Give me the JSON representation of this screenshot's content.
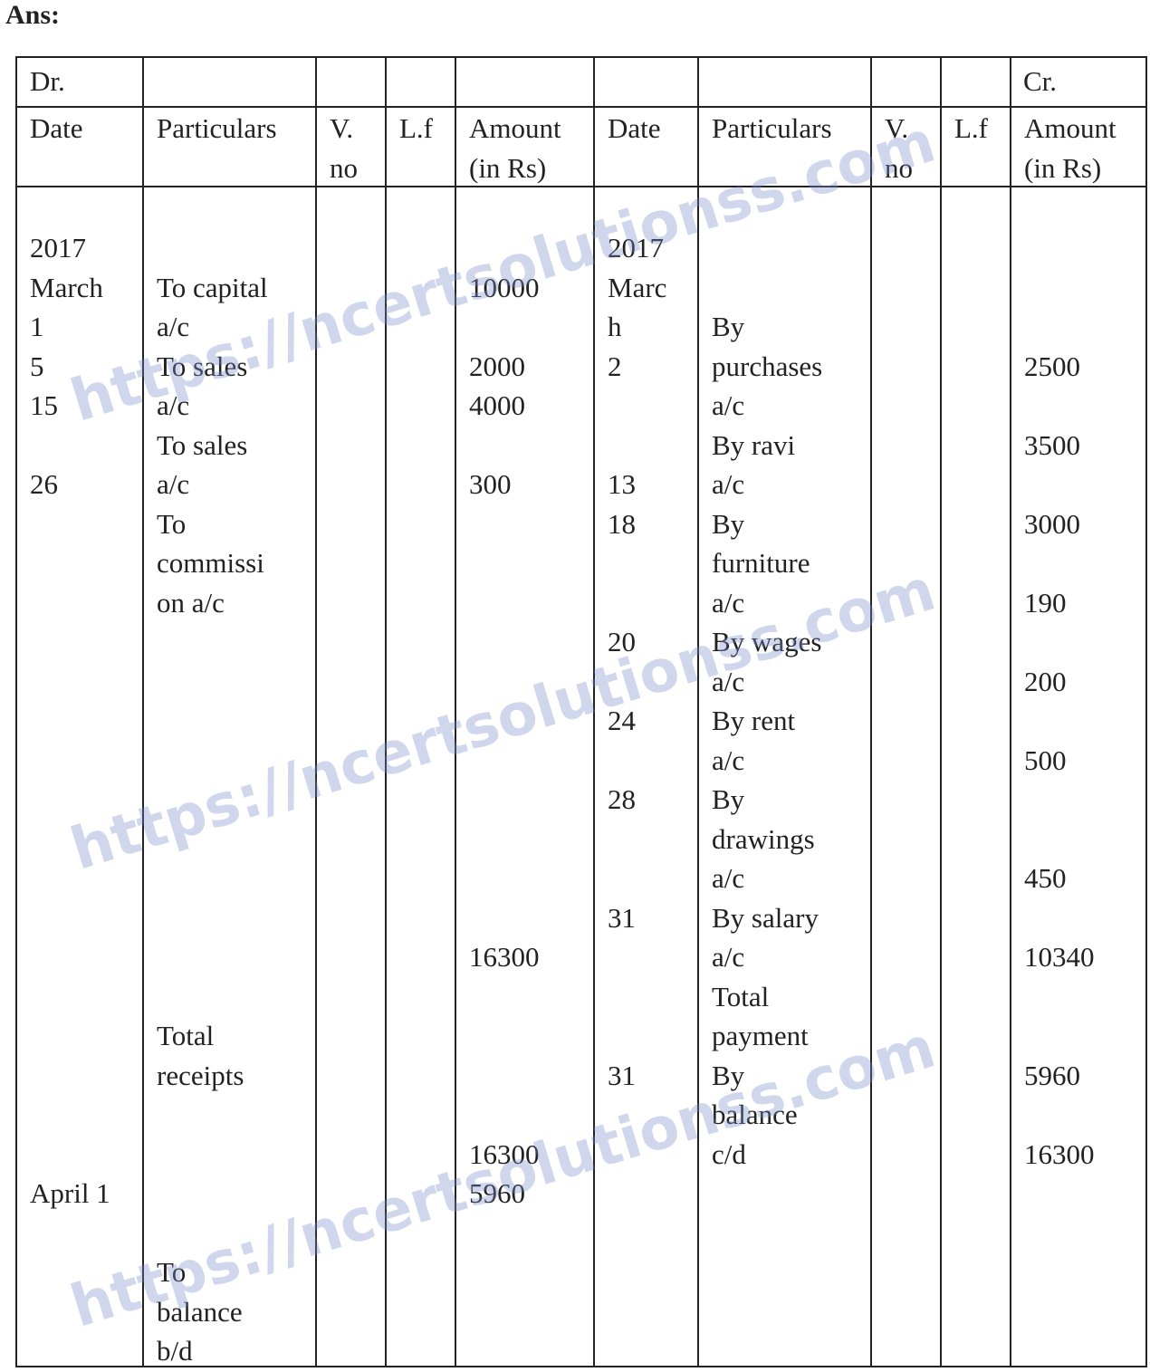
{
  "heading": "Ans:",
  "watermark": "https://ncertsolutionss.com",
  "top_row": {
    "dr": "Dr.",
    "cr": "Cr."
  },
  "headers": {
    "dr_date": "Date",
    "dr_particulars": "Particulars",
    "dr_vno": "V.\nno",
    "dr_lf": "L.f",
    "dr_amount": "Amount\n(in Rs)",
    "cr_date": "Date",
    "cr_particulars": "Particulars",
    "cr_vno": "V.\nno",
    "cr_lf": "L.f",
    "cr_amount": "Amount\n(in Rs)"
  },
  "columns": {
    "dr_date": [
      "2017",
      "March",
      "1",
      "5",
      "15",
      "",
      "26",
      "",
      "",
      "",
      "",
      "",
      "",
      "",
      "",
      "",
      "",
      "",
      "",
      "",
      "",
      "",
      "",
      "",
      "April 1"
    ],
    "dr_particulars": [
      "",
      "To capital",
      "a/c",
      "To sales",
      "a/c",
      "To sales",
      "a/c",
      "To",
      "commissi",
      "on a/c",
      "",
      "",
      "",
      "",
      "",
      "",
      "",
      "",
      "",
      "",
      "Total",
      "receipts",
      "",
      "",
      "",
      "",
      "To",
      "balance",
      "b/d"
    ],
    "dr_amount": [
      "",
      "10000",
      "",
      "2000",
      "4000",
      "",
      "300",
      "",
      "",
      "",
      "",
      "",
      "",
      "",
      "",
      "",
      "",
      "",
      "16300",
      "",
      "",
      "",
      "",
      "16300",
      "5960"
    ],
    "cr_date": [
      "2017",
      "Marc",
      "h",
      "2",
      "",
      "",
      "13",
      "18",
      "",
      "",
      "20",
      "",
      "24",
      "",
      "28",
      "",
      "",
      "31",
      "",
      "",
      "",
      "31"
    ],
    "cr_particulars": [
      "",
      "",
      "By",
      "purchases",
      "a/c",
      "By ravi",
      "a/c",
      "By",
      "furniture",
      "a/c",
      "By wages",
      "a/c",
      "By rent",
      "a/c",
      "By",
      "drawings",
      "a/c",
      "By salary",
      "a/c",
      "Total",
      "payment",
      "By",
      "balance",
      "c/d"
    ],
    "cr_amount": [
      "",
      "",
      "",
      "2500",
      "",
      "3500",
      "",
      "3000",
      "",
      "190",
      "",
      "200",
      "",
      "500",
      "",
      "",
      "450",
      "",
      "10340",
      "",
      "",
      "5960",
      "",
      "16300"
    ]
  }
}
